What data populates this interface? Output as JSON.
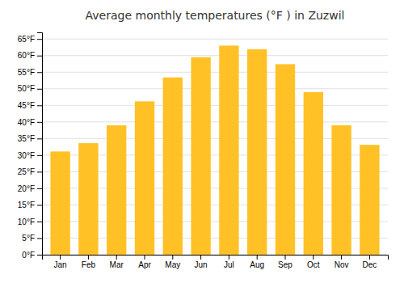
{
  "chart_data": {
    "type": "bar",
    "title": "Average monthly temperatures (°F ) in Zuzwil",
    "categories": [
      "Jan",
      "Feb",
      "Mar",
      "Apr",
      "May",
      "Jun",
      "Jul",
      "Aug",
      "Sep",
      "Oct",
      "Nov",
      "Dec"
    ],
    "values": [
      31.1,
      33.6,
      39.0,
      46.2,
      53.4,
      59.5,
      63.0,
      61.9,
      57.4,
      49.0,
      39.0,
      33.1
    ],
    "color": "#FFC125",
    "ylim": [
      0,
      67
    ],
    "yticks": [
      {
        "value": 0,
        "label": "0°F"
      },
      {
        "value": 5,
        "label": "5°F"
      },
      {
        "value": 10,
        "label": "10°F"
      },
      {
        "value": 15,
        "label": "15°F"
      },
      {
        "value": 20,
        "label": "20°F"
      },
      {
        "value": 25,
        "label": "25°F"
      },
      {
        "value": 30,
        "label": "30°F"
      },
      {
        "value": 35,
        "label": "35°F"
      },
      {
        "value": 40,
        "label": "40°F"
      },
      {
        "value": 45,
        "label": "45°F"
      },
      {
        "value": 50,
        "label": "50°F"
      },
      {
        "value": 55,
        "label": "55°F"
      },
      {
        "value": 60,
        "label": "60°F"
      },
      {
        "value": 65,
        "label": "65°F"
      }
    ],
    "grid": true
  }
}
